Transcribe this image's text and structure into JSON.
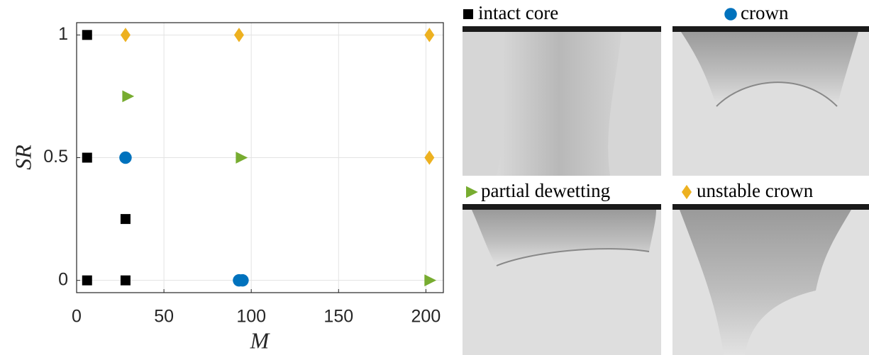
{
  "chart_data": {
    "type": "scatter",
    "xlabel": "M",
    "ylabel": "SR",
    "xlim": [
      0,
      210
    ],
    "xticks": [
      0,
      50,
      100,
      150,
      200
    ],
    "ylim": [
      -0.05,
      1.05
    ],
    "yticks": [
      0,
      0.5,
      1
    ],
    "grid": true,
    "series": [
      {
        "name": "intact core",
        "color": "#000000",
        "marker": "square",
        "x": [
          6,
          6,
          6,
          28,
          28
        ],
        "values": [
          1,
          0.5,
          0,
          0.25,
          0
        ]
      },
      {
        "name": "crown",
        "color": "#0072bd",
        "marker": "circle",
        "x": [
          28,
          93,
          95
        ],
        "values": [
          0.5,
          0,
          0
        ]
      },
      {
        "name": "partial dewetting",
        "color": "#77ac30",
        "marker": "triangle",
        "x": [
          29,
          94,
          202
        ],
        "values": [
          0.75,
          0.5,
          0
        ]
      },
      {
        "name": "unstable crown",
        "color": "#edb120",
        "marker": "diamond",
        "x": [
          28,
          93,
          202,
          202
        ],
        "values": [
          1,
          1,
          1,
          0.5
        ]
      }
    ]
  }
}
